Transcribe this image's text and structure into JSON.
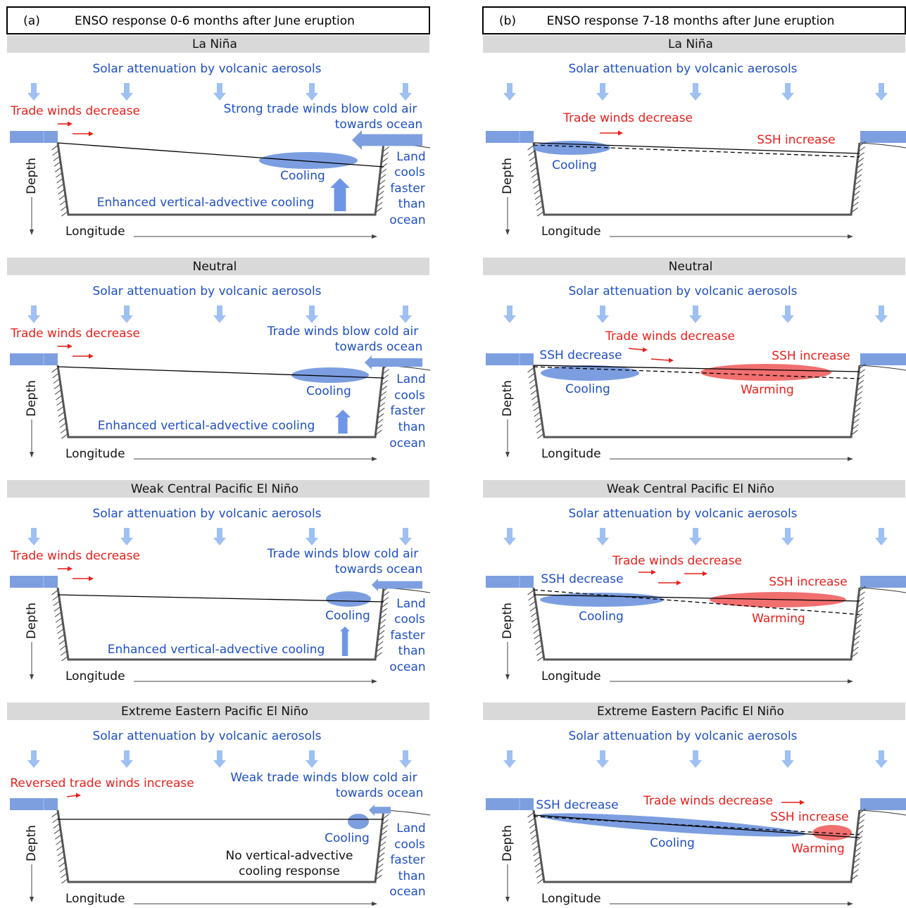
{
  "columns": [
    {
      "header": {
        "label": "(a)",
        "title": "ENSO response 0-6 months after June eruption"
      },
      "panels": [
        {
          "title": "La Niña",
          "texts": [
            "Solar attenuation by volcanic aerosols",
            "Depth",
            "Longitude",
            "Trade winds decrease",
            "Strong trade winds blow cold air",
            "towards ocean",
            "Cooling",
            "Land",
            "cools",
            "faster",
            "than",
            "ocean",
            "Enhanced vertical-advective cooling"
          ]
        },
        {
          "title": "Neutral",
          "texts": [
            "Solar attenuation by volcanic aerosols",
            "Depth",
            "Longitude",
            "Trade winds decrease",
            "Trade winds blow cold air",
            "towards ocean",
            "Cooling",
            "Land",
            "cools",
            "faster",
            "than",
            "ocean",
            "Enhanced vertical-advective cooling"
          ]
        },
        {
          "title": "Weak Central Pacific El Niño",
          "texts": [
            "Solar attenuation by volcanic aerosols",
            "Depth",
            "Longitude",
            "Trade winds decrease",
            "Trade winds blow cold air",
            "towards ocean",
            "Cooling",
            "Land",
            "cools",
            "faster",
            "than",
            "ocean",
            "Enhanced vertical-advective cooling"
          ]
        },
        {
          "title": "Extreme Eastern Pacific El Niño",
          "texts": [
            "Solar attenuation by volcanic aerosols",
            "Depth",
            "Longitude",
            "Reversed trade winds increase",
            "Weak trade winds blow cold air",
            "towards ocean",
            "Cooling",
            "Land",
            "cools",
            "faster",
            "than",
            "ocean",
            "No vertical-advective",
            "cooling response"
          ]
        }
      ]
    },
    {
      "header": {
        "label": "(b)",
        "title": "ENSO response 7-18 months after June eruption"
      },
      "panels": [
        {
          "title": "La Niña",
          "texts": [
            "Solar attenuation by volcanic aerosols",
            "Depth",
            "Longitude",
            "Trade winds decrease",
            "SSH increase",
            "Cooling"
          ]
        },
        {
          "title": "Neutral",
          "texts": [
            "Solar attenuation by volcanic aerosols",
            "Depth",
            "Longitude",
            "SSH decrease",
            "Trade winds decrease",
            "SSH increase",
            "Cooling",
            "Warming"
          ]
        },
        {
          "title": "Weak Central Pacific El Niño",
          "texts": [
            "Solar attenuation by volcanic aerosols",
            "Depth",
            "Longitude",
            "SSH decrease",
            "Trade winds decrease",
            "SSH increase",
            "Cooling",
            "Warming"
          ]
        },
        {
          "title": "Extreme Eastern Pacific El Niño",
          "texts": [
            "Solar attenuation by volcanic aerosols",
            "Depth",
            "Longitude",
            "SSH decrease",
            "Trade winds decrease",
            "SSH increase",
            "Cooling",
            "Warming"
          ]
        }
      ]
    }
  ]
}
